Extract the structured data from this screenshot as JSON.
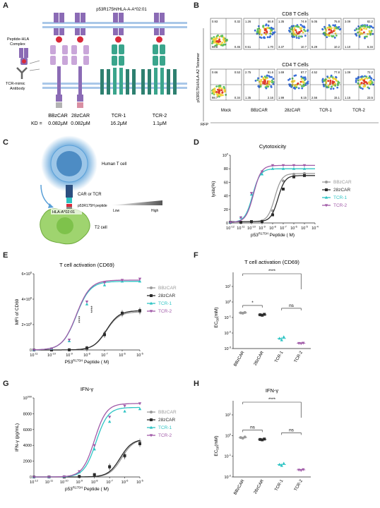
{
  "panels": {
    "A": {
      "letter": "A",
      "header": "p53R175H/HLA-A-A*02:01",
      "complex_label_1": "Peptide-HLA",
      "complex_label_2": "Complex",
      "antibody_label_1": "TCR-mimic",
      "antibody_label_2": "Antibody",
      "kd_prefix": "KD =",
      "constructs": [
        {
          "name": "BBzCAR",
          "kd": "0.082μM"
        },
        {
          "name": "28zCAR",
          "kd": "0.082μM"
        },
        {
          "name": "TCR-1",
          "kd": "16.2μM"
        },
        {
          "name": "TCR-2",
          "kd": "1.1μM"
        }
      ]
    },
    "B": {
      "letter": "B",
      "row1_title": "CD8 T Cells",
      "row2_title": "CD4 T Cells",
      "y_axis": "p53R175H/HLA-A2 Tetramer",
      "x_axis": "RFP",
      "columns": [
        "Mock",
        "BBzCAR",
        "28zCAR",
        "TCR-1",
        "TCR-2"
      ],
      "row1_quadrants": [
        [
          "0.93",
          "0.32",
          "98.8",
          "0.45"
        ],
        [
          "1.26",
          "86.8",
          "0.51",
          "1.70"
        ],
        [
          "1.35",
          "74.9",
          "3.37",
          "10.7"
        ],
        [
          "5.05",
          "75.8",
          "6.29",
          "10.2"
        ],
        [
          "3.09",
          "82.2",
          "1.10",
          "6.34"
        ]
      ],
      "row2_quadrants": [
        [
          "0.66",
          "0.53",
          "98.7",
          "0.34"
        ],
        [
          "2.75",
          "91.6",
          "1.35",
          "2.16"
        ],
        [
          "1.69",
          "87.7",
          "1.99",
          "8.15"
        ],
        [
          "4.52",
          "77.8",
          "2.56",
          "15.1"
        ],
        [
          "1.09",
          "72.2",
          "1.15",
          "23.5"
        ]
      ]
    },
    "C": {
      "letter": "C",
      "human_t_cell": "Human T cell",
      "car_tcr": "CAR or TCR",
      "peptide": "p53R175H peptide",
      "low": "Low",
      "high": "High",
      "hla": "HLA-A*02:01",
      "t2": "T2 cell"
    },
    "D": {
      "letter": "D"
    },
    "E": {
      "letter": "E"
    },
    "F": {
      "letter": "F"
    },
    "G": {
      "letter": "G"
    },
    "H": {
      "letter": "H"
    }
  },
  "colors": {
    "bbz": "#9a9a9a",
    "cd28": "#2b2b2b",
    "tcr1": "#2ec4c4",
    "tcr2": "#a05aa8",
    "purple_receptor": "#8b6bb5",
    "light_purple": "#c9a6d9",
    "green_receptor": "#3aa58c",
    "membrane": "#a9c7e8",
    "t_cell": "#5aa0d8",
    "t2_cell": "#9fd46f"
  },
  "chart_data": [
    {
      "id": "D",
      "type": "line",
      "title": "Cytotoxicity",
      "ylabel": "lysis(%)",
      "xlabel": "p53R175H Peptide ( M)",
      "x_ticks": [
        "10-12",
        "10-11",
        "10-10",
        "10-9",
        "10-8",
        "10-7",
        "10-6",
        "10-5",
        "10-4"
      ],
      "x_log_range": [
        -12,
        -4
      ],
      "ylim": [
        0,
        100
      ],
      "y_ticks": [
        "0",
        "20",
        "40",
        "60",
        "80",
        "100"
      ],
      "series": [
        {
          "name": "BBzCAR",
          "color_key": "bbz",
          "marker": "circle",
          "bottom": 2,
          "top": 73,
          "logec50": -7.8,
          "hill": 1.3,
          "x": [
            -12,
            -11,
            -10,
            -9,
            -8,
            -7,
            -6,
            -5
          ],
          "y": [
            1,
            1,
            2,
            3,
            18,
            62,
            72,
            73
          ]
        },
        {
          "name": "28zCAR",
          "color_key": "cd28",
          "marker": "square",
          "bottom": 2,
          "top": 70,
          "logec50": -7.5,
          "hill": 1.3,
          "x": [
            -12,
            -11,
            -10,
            -9,
            -8,
            -7,
            -6,
            -5
          ],
          "y": [
            1,
            1,
            2,
            2,
            12,
            50,
            68,
            70
          ]
        },
        {
          "name": "TCR-1",
          "color_key": "tcr1",
          "marker": "triangle",
          "bottom": 1,
          "top": 80,
          "logec50": -9.9,
          "hill": 1.2,
          "x": [
            -12,
            -11,
            -10,
            -9,
            -8,
            -7,
            -6,
            -5
          ],
          "y": [
            1,
            8,
            42,
            72,
            80,
            80,
            80,
            80
          ]
        },
        {
          "name": "TCR-2",
          "color_key": "tcr2",
          "marker": "triangle-down",
          "bottom": 1,
          "top": 85,
          "logec50": -9.8,
          "hill": 1.2,
          "x": [
            -12,
            -11,
            -10,
            -9,
            -8,
            -7,
            -6,
            -5
          ],
          "y": [
            1,
            8,
            44,
            76,
            85,
            85,
            85,
            85
          ]
        }
      ]
    },
    {
      "id": "E",
      "type": "line",
      "title": "T cell activation (CD69)",
      "ylabel": "MFI of CD69",
      "xlabel": "P53R175H Peptide ( M)",
      "x_ticks": [
        "10-11",
        "10-10",
        "10-9",
        "10-8",
        "10-7",
        "10-6",
        "10-5"
      ],
      "x_log_range": [
        -11,
        -5
      ],
      "ylim": [
        0,
        6000000
      ],
      "y_ticks": [
        "0",
        "2×106",
        "4×106",
        "6×106"
      ],
      "annotation": "****",
      "series": [
        {
          "name": "BBzCAR",
          "color_key": "bbz",
          "marker": "circle",
          "bottom": 0,
          "top": 3000000,
          "logec50": -6.9,
          "hill": 1.2,
          "x": [
            -11,
            -10,
            -9,
            -8,
            -7,
            -6,
            -5
          ],
          "y": [
            0,
            0,
            20000,
            200000,
            1300000,
            2800000,
            3000000
          ]
        },
        {
          "name": "28zCAR",
          "color_key": "cd28",
          "marker": "square",
          "bottom": 0,
          "top": 3100000,
          "logec50": -6.9,
          "hill": 1.2,
          "x": [
            -11,
            -10,
            -9,
            -8,
            -7,
            -6,
            -5
          ],
          "y": [
            0,
            0,
            10000,
            150000,
            1200000,
            2900000,
            3100000
          ]
        },
        {
          "name": "TCR-1",
          "color_key": "tcr1",
          "marker": "triangle",
          "bottom": 0,
          "top": 5400000,
          "logec50": -8.6,
          "hill": 1.1,
          "x": [
            -11,
            -10,
            -9,
            -8,
            -7,
            -6,
            -5
          ],
          "y": [
            0,
            100000,
            700000,
            3600000,
            5100000,
            5400000,
            5400000
          ]
        },
        {
          "name": "TCR-2",
          "color_key": "tcr2",
          "marker": "triangle-down",
          "bottom": 0,
          "top": 5500000,
          "logec50": -8.6,
          "hill": 1.1,
          "x": [
            -11,
            -10,
            -9,
            -8,
            -7,
            -6,
            -5
          ],
          "y": [
            0,
            100000,
            800000,
            3800000,
            5300000,
            5500000,
            5600000
          ]
        }
      ]
    },
    {
      "id": "F",
      "type": "scatter",
      "title": "T cell activation (CD69)",
      "ylabel": "EC50(mM)",
      "log_range": [
        -3,
        1
      ],
      "y_ticks": [
        "10-3",
        "10-2",
        "10-1",
        "100",
        "101"
      ],
      "categories": [
        "BBzCAR",
        "28zCAR",
        "TCR-1",
        "TCR-2"
      ],
      "color_keys": [
        "bbz",
        "cd28",
        "tcr1",
        "tcr2"
      ],
      "markers": [
        "circle",
        "square",
        "triangle",
        "triangle-down"
      ],
      "values": [
        [
          0.2,
          0.19,
          0.21
        ],
        [
          0.15,
          0.14,
          0.16
        ],
        [
          0.0045,
          0.0035,
          0.0055
        ],
        [
          0.0022,
          0.0021,
          0.0023
        ]
      ],
      "sig": [
        {
          "from": 0,
          "to": 1,
          "label": "*",
          "level": 1
        },
        {
          "from": 2,
          "to": 3,
          "label": "ns",
          "level": 1
        },
        {
          "from": 0,
          "to": 3,
          "label": "****",
          "level": 2
        }
      ]
    },
    {
      "id": "G",
      "type": "line",
      "title": "IFN-γ",
      "ylabel": "IFN-γ (pg/mL)",
      "xlabel": "p53R175H Peptide ( M)",
      "x_ticks": [
        "10-12",
        "10-11",
        "10-10",
        "10-9",
        "10-8",
        "10-7",
        "10-6",
        "10-5"
      ],
      "x_log_range": [
        -12,
        -5
      ],
      "ylim": [
        0,
        10000
      ],
      "y_ticks": [
        "0",
        "2000",
        "4000",
        "6000",
        "8000",
        "10000"
      ],
      "series": [
        {
          "name": "BBzCAR",
          "color_key": "bbz",
          "marker": "circle",
          "bottom": 0,
          "top": 4800,
          "logec50": -6.2,
          "hill": 1.1,
          "x": [
            -12,
            -11,
            -10,
            -9,
            -8,
            -7,
            -6,
            -5
          ],
          "y": [
            0,
            0,
            0,
            80,
            300,
            1200,
            2600,
            4500
          ]
        },
        {
          "name": "28zCAR",
          "color_key": "cd28",
          "marker": "square",
          "bottom": 0,
          "top": 4800,
          "logec50": -6.3,
          "hill": 1.1,
          "x": [
            -12,
            -11,
            -10,
            -9,
            -8,
            -7,
            -6,
            -5
          ],
          "y": [
            0,
            0,
            0,
            60,
            300,
            1300,
            2700,
            4200
          ]
        },
        {
          "name": "TCR-1",
          "color_key": "tcr1",
          "marker": "triangle",
          "bottom": 0,
          "top": 8800,
          "logec50": -7.9,
          "hill": 1.1,
          "x": [
            -12,
            -11,
            -10,
            -9,
            -8,
            -7,
            -6,
            -5
          ],
          "y": [
            0,
            0,
            50,
            600,
            3500,
            7000,
            8300,
            8600
          ]
        },
        {
          "name": "TCR-2",
          "color_key": "tcr2",
          "marker": "triangle-down",
          "bottom": 0,
          "top": 9300,
          "logec50": -8.0,
          "hill": 1.1,
          "x": [
            -12,
            -11,
            -10,
            -9,
            -8,
            -7,
            -6,
            -5
          ],
          "y": [
            0,
            0,
            50,
            700,
            4000,
            7600,
            9000,
            9300
          ]
        }
      ]
    },
    {
      "id": "H",
      "type": "scatter",
      "title": "IFN-γ",
      "ylabel": "EC50(mM)",
      "log_range": [
        -2,
        1
      ],
      "y_ticks": [
        "10-2",
        "10-1",
        "100",
        "101"
      ],
      "categories": [
        "BBzCAR",
        "28zCAR",
        "TCR-1",
        "TCR-2"
      ],
      "color_keys": [
        "bbz",
        "cd28",
        "tcr1",
        "tcr2"
      ],
      "markers": [
        "circle",
        "square",
        "triangle",
        "triangle-down"
      ],
      "values": [
        [
          0.8,
          0.75,
          0.85
        ],
        [
          0.65,
          0.62,
          0.68
        ],
        [
          0.04,
          0.035,
          0.045
        ],
        [
          0.022,
          0.021,
          0.023
        ]
      ],
      "sig": [
        {
          "from": 0,
          "to": 1,
          "label": "ns",
          "level": 1
        },
        {
          "from": 2,
          "to": 3,
          "label": "ns",
          "level": 1
        },
        {
          "from": 0,
          "to": 3,
          "label": "****",
          "level": 2
        }
      ]
    }
  ]
}
